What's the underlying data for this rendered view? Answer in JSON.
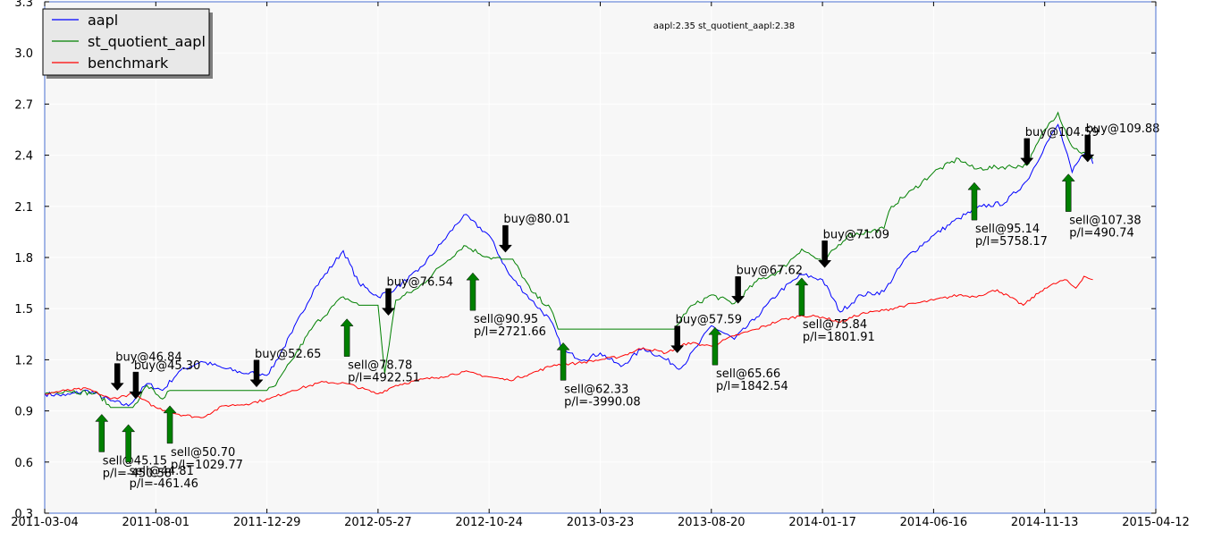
{
  "chart_data": {
    "type": "line",
    "title": "",
    "subtitle": "aapl:2.35 st_quotient_aapl:2.38",
    "xlabel": "",
    "ylabel": "",
    "xlim": [
      "2011-03-04",
      "2015-04-12"
    ],
    "ylim": [
      0.3,
      3.3
    ],
    "x_ticks": [
      "2011-03-04",
      "2011-08-01",
      "2011-12-29",
      "2012-05-27",
      "2012-10-24",
      "2013-03-23",
      "2013-08-20",
      "2014-01-17",
      "2014-06-16",
      "2014-11-13",
      "2015-04-12"
    ],
    "y_ticks": [
      "0.3",
      "0.6",
      "0.9",
      "1.2",
      "1.5",
      "1.8",
      "2.1",
      "2.4",
      "2.7",
      "3.0",
      "3.3"
    ],
    "grid": true,
    "legend_position": "top-left",
    "series": [
      {
        "name": "aapl",
        "color": "#0000ff",
        "points": [
          [
            "2011-03-04",
            1.0
          ],
          [
            "2011-04-01",
            0.99
          ],
          [
            "2011-05-01",
            1.02
          ],
          [
            "2011-06-01",
            0.96
          ],
          [
            "2011-06-25",
            0.93
          ],
          [
            "2011-07-20",
            1.06
          ],
          [
            "2011-08-10",
            1.02
          ],
          [
            "2011-09-01",
            1.13
          ],
          [
            "2011-10-01",
            1.19
          ],
          [
            "2011-11-01",
            1.15
          ],
          [
            "2011-12-01",
            1.12
          ],
          [
            "2012-01-01",
            1.12
          ],
          [
            "2012-02-01",
            1.36
          ],
          [
            "2012-03-01",
            1.61
          ],
          [
            "2012-04-10",
            1.84
          ],
          [
            "2012-05-01",
            1.65
          ],
          [
            "2012-05-27",
            1.57
          ],
          [
            "2012-06-20",
            1.62
          ],
          [
            "2012-07-20",
            1.72
          ],
          [
            "2012-08-20",
            1.88
          ],
          [
            "2012-09-20",
            2.05
          ],
          [
            "2012-10-24",
            1.93
          ],
          [
            "2012-11-20",
            1.7
          ],
          [
            "2012-12-20",
            1.55
          ],
          [
            "2013-01-15",
            1.43
          ],
          [
            "2013-02-01",
            1.25
          ],
          [
            "2013-03-01",
            1.2
          ],
          [
            "2013-03-23",
            1.24
          ],
          [
            "2013-04-20",
            1.16
          ],
          [
            "2013-05-20",
            1.27
          ],
          [
            "2013-06-20",
            1.2
          ],
          [
            "2013-07-10",
            1.15
          ],
          [
            "2013-08-01",
            1.28
          ],
          [
            "2013-08-20",
            1.4
          ],
          [
            "2013-09-20",
            1.32
          ],
          [
            "2013-10-20",
            1.45
          ],
          [
            "2013-11-20",
            1.6
          ],
          [
            "2013-12-20",
            1.7
          ],
          [
            "2014-01-17",
            1.67
          ],
          [
            "2014-02-10",
            1.48
          ],
          [
            "2014-03-10",
            1.58
          ],
          [
            "2014-04-10",
            1.6
          ],
          [
            "2014-05-10",
            1.8
          ],
          [
            "2014-06-16",
            1.93
          ],
          [
            "2014-07-20",
            2.03
          ],
          [
            "2014-08-20",
            2.1
          ],
          [
            "2014-09-20",
            2.12
          ],
          [
            "2014-10-20",
            2.25
          ],
          [
            "2014-11-13",
            2.45
          ],
          [
            "2014-12-01",
            2.58
          ],
          [
            "2014-12-20",
            2.3
          ],
          [
            "2015-01-10",
            2.45
          ],
          [
            "2015-01-17",
            2.35
          ]
        ]
      },
      {
        "name": "st_quotient_aapl",
        "color": "#008000",
        "points": [
          [
            "2011-03-04",
            1.0
          ],
          [
            "2011-04-01",
            1.02
          ],
          [
            "2011-05-15",
            1.0
          ],
          [
            "2011-06-01",
            0.92
          ],
          [
            "2011-07-01",
            0.92
          ],
          [
            "2011-07-20",
            1.05
          ],
          [
            "2011-08-10",
            0.97
          ],
          [
            "2011-08-20",
            1.02
          ],
          [
            "2011-12-29",
            1.02
          ],
          [
            "2012-01-10",
            1.05
          ],
          [
            "2012-02-01",
            1.2
          ],
          [
            "2012-03-01",
            1.4
          ],
          [
            "2012-04-10",
            1.57
          ],
          [
            "2012-05-01",
            1.52
          ],
          [
            "2012-05-27",
            1.52
          ],
          [
            "2012-06-05",
            1.12
          ],
          [
            "2012-06-20",
            1.55
          ],
          [
            "2012-07-20",
            1.62
          ],
          [
            "2012-08-20",
            1.75
          ],
          [
            "2012-09-20",
            1.87
          ],
          [
            "2012-10-24",
            1.8
          ],
          [
            "2012-11-10",
            1.79
          ],
          [
            "2012-11-25",
            1.79
          ],
          [
            "2012-12-20",
            1.6
          ],
          [
            "2013-01-15",
            1.5
          ],
          [
            "2013-01-25",
            1.38
          ],
          [
            "2013-07-01",
            1.38
          ],
          [
            "2013-07-20",
            1.5
          ],
          [
            "2013-08-20",
            1.58
          ],
          [
            "2013-09-20",
            1.53
          ],
          [
            "2013-10-20",
            1.66
          ],
          [
            "2013-11-20",
            1.72
          ],
          [
            "2013-12-20",
            1.85
          ],
          [
            "2014-01-17",
            1.77
          ],
          [
            "2014-02-20",
            1.93
          ],
          [
            "2014-03-20",
            1.95
          ],
          [
            "2014-04-10",
            1.97
          ],
          [
            "2014-04-20",
            2.1
          ],
          [
            "2014-05-20",
            2.2
          ],
          [
            "2014-06-16",
            2.3
          ],
          [
            "2014-07-20",
            2.38
          ],
          [
            "2014-08-10",
            2.32
          ],
          [
            "2014-10-20",
            2.34
          ],
          [
            "2014-11-13",
            2.55
          ],
          [
            "2014-12-01",
            2.65
          ],
          [
            "2014-12-20",
            2.45
          ],
          [
            "2015-01-17",
            2.38
          ]
        ]
      },
      {
        "name": "benchmark",
        "color": "#ff0000",
        "points": [
          [
            "2011-03-04",
            1.0
          ],
          [
            "2011-04-01",
            1.02
          ],
          [
            "2011-05-01",
            1.03
          ],
          [
            "2011-06-01",
            0.97
          ],
          [
            "2011-07-01",
            1.0
          ],
          [
            "2011-08-01",
            0.92
          ],
          [
            "2011-09-01",
            0.88
          ],
          [
            "2011-10-01",
            0.86
          ],
          [
            "2011-11-01",
            0.93
          ],
          [
            "2011-12-01",
            0.94
          ],
          [
            "2012-01-01",
            0.97
          ],
          [
            "2012-02-01",
            1.02
          ],
          [
            "2012-03-15",
            1.07
          ],
          [
            "2012-04-15",
            1.06
          ],
          [
            "2012-05-27",
            1.0
          ],
          [
            "2012-06-20",
            1.05
          ],
          [
            "2012-07-20",
            1.08
          ],
          [
            "2012-08-20",
            1.1
          ],
          [
            "2012-09-20",
            1.13
          ],
          [
            "2012-10-24",
            1.1
          ],
          [
            "2012-11-20",
            1.08
          ],
          [
            "2012-12-20",
            1.12
          ],
          [
            "2013-01-20",
            1.17
          ],
          [
            "2013-02-20",
            1.18
          ],
          [
            "2013-03-23",
            1.2
          ],
          [
            "2013-04-20",
            1.22
          ],
          [
            "2013-05-20",
            1.27
          ],
          [
            "2013-06-20",
            1.24
          ],
          [
            "2013-07-20",
            1.3
          ],
          [
            "2013-08-20",
            1.28
          ],
          [
            "2013-09-20",
            1.34
          ],
          [
            "2013-10-20",
            1.38
          ],
          [
            "2013-11-20",
            1.43
          ],
          [
            "2013-12-20",
            1.46
          ],
          [
            "2014-01-17",
            1.45
          ],
          [
            "2014-02-10",
            1.42
          ],
          [
            "2014-03-10",
            1.47
          ],
          [
            "2014-04-10",
            1.49
          ],
          [
            "2014-05-10",
            1.52
          ],
          [
            "2014-06-16",
            1.55
          ],
          [
            "2014-07-20",
            1.58
          ],
          [
            "2014-08-10",
            1.57
          ],
          [
            "2014-09-10",
            1.61
          ],
          [
            "2014-10-15",
            1.52
          ],
          [
            "2014-11-13",
            1.62
          ],
          [
            "2014-12-10",
            1.67
          ],
          [
            "2014-12-25",
            1.62
          ],
          [
            "2015-01-05",
            1.69
          ],
          [
            "2015-01-17",
            1.67
          ]
        ]
      }
    ],
    "annotations": [
      {
        "text": "buy@46.84",
        "type": "buy",
        "x": "2011-06-10",
        "y": 1.22
      },
      {
        "text": "buy@45.30",
        "type": "buy",
        "x": "2011-07-05",
        "y": 1.17
      },
      {
        "text": "buy@52.65",
        "type": "buy",
        "x": "2011-12-15",
        "y": 1.24
      },
      {
        "text": "buy@76.54",
        "type": "buy",
        "x": "2012-06-10",
        "y": 1.66
      },
      {
        "text": "buy@80.01",
        "type": "buy",
        "x": "2012-11-15",
        "y": 2.03
      },
      {
        "text": "buy@57.59",
        "type": "buy",
        "x": "2013-07-05",
        "y": 1.44
      },
      {
        "text": "buy@67.62",
        "type": "buy",
        "x": "2013-09-25",
        "y": 1.73
      },
      {
        "text": "buy@71.09",
        "type": "buy",
        "x": "2014-01-20",
        "y": 1.94
      },
      {
        "text": "buy@104.59",
        "type": "buy",
        "x": "2014-10-20",
        "y": 2.54
      },
      {
        "text": "buy@109.88",
        "type": "buy",
        "x": "2015-01-10",
        "y": 2.56
      },
      {
        "text": "sell@45.15",
        "sub": "p/l=-450.58",
        "type": "sell",
        "x": "2011-05-20",
        "y": 0.88
      },
      {
        "text": "sell@44.81",
        "sub": "p/l=-461.46",
        "type": "sell",
        "x": "2011-06-25",
        "y": 0.82
      },
      {
        "text": "sell@50.70",
        "sub": "p/l=1029.77",
        "type": "sell",
        "x": "2011-08-20",
        "y": 0.93
      },
      {
        "text": "sell@78.78",
        "sub": "p/l=4922.51",
        "type": "sell",
        "x": "2012-04-15",
        "y": 1.44
      },
      {
        "text": "sell@90.95",
        "sub": "p/l=2721.66",
        "type": "sell",
        "x": "2012-10-02",
        "y": 1.71
      },
      {
        "text": "sell@62.33",
        "sub": "p/l=-3990.08",
        "type": "sell",
        "x": "2013-02-01",
        "y": 1.3
      },
      {
        "text": "sell@65.66",
        "sub": "p/l=1842.54",
        "type": "sell",
        "x": "2013-08-25",
        "y": 1.39
      },
      {
        "text": "sell@75.84",
        "sub": "p/l=1801.91",
        "type": "sell",
        "x": "2013-12-20",
        "y": 1.68
      },
      {
        "text": "sell@95.14",
        "sub": "p/l=5758.17",
        "type": "sell",
        "x": "2014-08-10",
        "y": 2.24
      },
      {
        "text": "sell@107.38",
        "sub": "p/l=490.74",
        "type": "sell",
        "x": "2014-12-15",
        "y": 2.29
      }
    ]
  }
}
